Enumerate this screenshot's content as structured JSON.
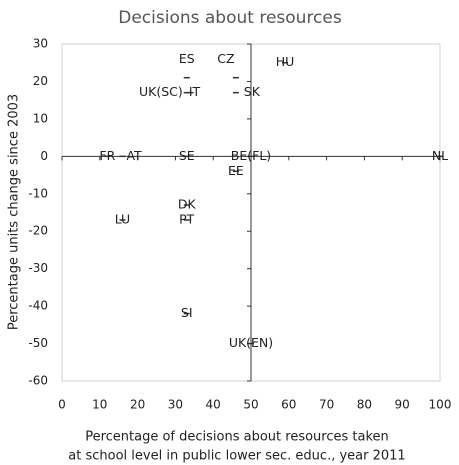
{
  "chart_data": {
    "type": "scatter",
    "title": "Decisions about resources",
    "x_label": [
      "Percentage of decisions about resources taken",
      "at school level in public lower sec. educ., year 2011"
    ],
    "y_label": "Percentage units change since 2003",
    "xlim": [
      0,
      100
    ],
    "ylim": [
      -60,
      30
    ],
    "xticks": [
      0,
      10,
      20,
      30,
      40,
      50,
      60,
      70,
      80,
      90,
      100
    ],
    "yticks": [
      -60,
      -50,
      -40,
      -30,
      -20,
      -10,
      0,
      10,
      20,
      30
    ],
    "color": "#333333",
    "points": [
      {
        "label": "HU",
        "x": 59,
        "y": 25
      },
      {
        "label": "ES",
        "x": 33,
        "y": 21
      },
      {
        "label": "CZ",
        "x": 46,
        "y": 21
      },
      {
        "label": "SK",
        "x": 46,
        "y": 17
      },
      {
        "label": "UK(SC)",
        "x": 33,
        "y": 17
      },
      {
        "label": "IT",
        "x": 34,
        "y": 17
      },
      {
        "label": "FR",
        "x": 12,
        "y": 0
      },
      {
        "label": "AT",
        "x": 16,
        "y": 0
      },
      {
        "label": "SE",
        "x": 33,
        "y": 0
      },
      {
        "label": "BE(FL)",
        "x": 50,
        "y": 0
      },
      {
        "label": "NL",
        "x": 100,
        "y": 0
      },
      {
        "label": "EE",
        "x": 46,
        "y": -4
      },
      {
        "label": "DK",
        "x": 33,
        "y": -13
      },
      {
        "label": "PT",
        "x": 33,
        "y": -17
      },
      {
        "label": "LU",
        "x": 16,
        "y": -17
      },
      {
        "label": "SI",
        "x": 33,
        "y": -42
      },
      {
        "label": "UK(EN)",
        "x": 50,
        "y": -50
      }
    ]
  }
}
